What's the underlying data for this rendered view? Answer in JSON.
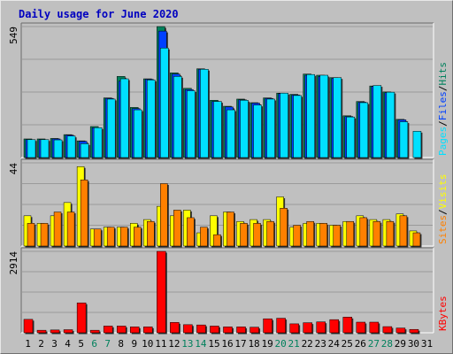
{
  "chart_data": {
    "type": "bar",
    "title": "Daily usage for June 2020",
    "colors": {
      "hits": "#00805c",
      "files": "#0040ff",
      "pages": "#00e0ff",
      "visits": "#ffff00",
      "sites": "#ff8000",
      "kbytes": "#ff0000",
      "weekend_day_label": "#00805c",
      "title": "#0000c0"
    },
    "x": [
      "1",
      "2",
      "3",
      "4",
      "5",
      "6",
      "7",
      "8",
      "9",
      "10",
      "11",
      "12",
      "13",
      "14",
      "15",
      "16",
      "17",
      "18",
      "19",
      "20",
      "21",
      "22",
      "23",
      "24",
      "25",
      "26",
      "27",
      "28",
      "29",
      "30",
      "31"
    ],
    "weekend_days": [
      "6",
      "7",
      "13",
      "14",
      "20",
      "21",
      "27",
      "28"
    ],
    "panels": [
      {
        "id": "usage",
        "max_label": "549",
        "ylim": [
          0,
          549
        ],
        "series_labels": [
          "Pages",
          "Files",
          "Hits"
        ],
        "series": [
          {
            "name": "Hits",
            "values": [
              78,
              78,
              80,
              96,
              70,
              130,
              250,
              340,
              210,
              330,
              549,
              355,
              290,
              372,
              240,
              215,
              245,
              230,
              250,
              270,
              265,
              350,
              345,
              335,
              175,
              235,
              300,
              275,
              160,
              0,
              0
            ]
          },
          {
            "name": "Files",
            "values": [
              75,
              75,
              78,
              94,
              68,
              125,
              248,
              320,
              205,
              328,
              530,
              350,
              285,
              370,
              235,
              212,
              242,
              228,
              248,
              268,
              262,
              345,
              340,
              332,
              172,
              232,
              298,
              272,
              158,
              0,
              0
            ]
          },
          {
            "name": "Pages",
            "values": [
              75,
              75,
              74,
              90,
              58,
              125,
              245,
              330,
              200,
              325,
              459,
              340,
              280,
              370,
              235,
              200,
              240,
              220,
              245,
              270,
              260,
              348,
              345,
              335,
              170,
              230,
              302,
              274,
              150,
              110,
              0
            ]
          }
        ]
      },
      {
        "id": "visitors",
        "max_label": "44",
        "ylim": [
          0,
          44
        ],
        "series_labels": [
          "Sites",
          "Visits"
        ],
        "series": [
          {
            "name": "Visits",
            "values": [
              16,
              12,
              16,
              23,
              42,
              9,
              10,
              10,
              12,
              14,
              21,
              16,
              19,
              7,
              16,
              18,
              13,
              14,
              14,
              26,
              10,
              12,
              12,
              11,
              13,
              16,
              14,
              14,
              17,
              8,
              0
            ]
          },
          {
            "name": "Sites",
            "values": [
              12,
              12,
              18,
              18,
              35,
              9,
              10,
              10,
              10,
              13,
              33,
              19,
              15,
              10,
              6,
              18,
              12,
              12,
              13,
              20,
              11,
              13,
              12,
              11,
              13,
              15,
              13,
              13,
              16,
              7,
              0
            ]
          }
        ]
      },
      {
        "id": "kbytes",
        "max_label": "2914",
        "ylim": [
          0,
          2914
        ],
        "series_labels": [
          "KBytes"
        ],
        "series": [
          {
            "name": "KBytes",
            "values": [
              480,
              90,
              100,
              110,
              1070,
              90,
              240,
              240,
              210,
              210,
              2914,
              370,
              290,
              280,
              240,
              210,
              210,
              200,
              500,
              520,
              320,
              360,
              390,
              470,
              560,
              380,
              380,
              220,
              170,
              120,
              0
            ]
          }
        ]
      }
    ]
  }
}
